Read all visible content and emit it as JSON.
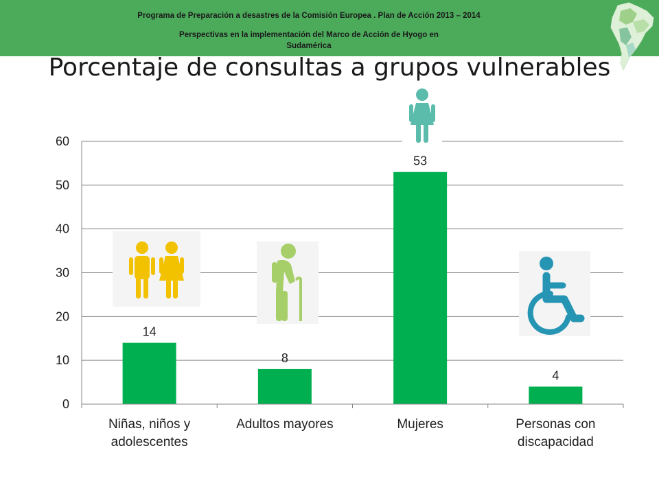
{
  "header": {
    "line1": "Programa de Preparación a desastres de la Comisión Europea . Plan de Acción 2013 – 2014",
    "line2": "Perspectivas en la implementación del Marco de Acción de Hyogo en",
    "line3": "Sudamérica",
    "band_color": "#4caa5b"
  },
  "slide_title": "Porcentaje de consultas a grupos vulnerables",
  "chart_data": {
    "type": "bar",
    "categories": [
      [
        "Niñas, niños y",
        "adolescentes"
      ],
      [
        "Adultos mayores"
      ],
      [
        "Mujeres"
      ],
      [
        "Personas con",
        "discapacidad"
      ]
    ],
    "values": [
      14,
      8,
      53,
      4
    ],
    "data_labels": [
      "14",
      "8",
      "53",
      "4"
    ],
    "ylim": [
      0,
      60
    ],
    "yticks": [
      0,
      10,
      20,
      30,
      40,
      50,
      60
    ],
    "grid": true,
    "bar_color": "#00b050",
    "legend": "none"
  },
  "icons": [
    {
      "name": "children-icon",
      "color": "#f2c200"
    },
    {
      "name": "elderly-person-icon",
      "color": "#a6cf6a"
    },
    {
      "name": "woman-icon",
      "color": "#5bbcac"
    },
    {
      "name": "wheelchair-icon",
      "color": "#2695b4"
    }
  ]
}
